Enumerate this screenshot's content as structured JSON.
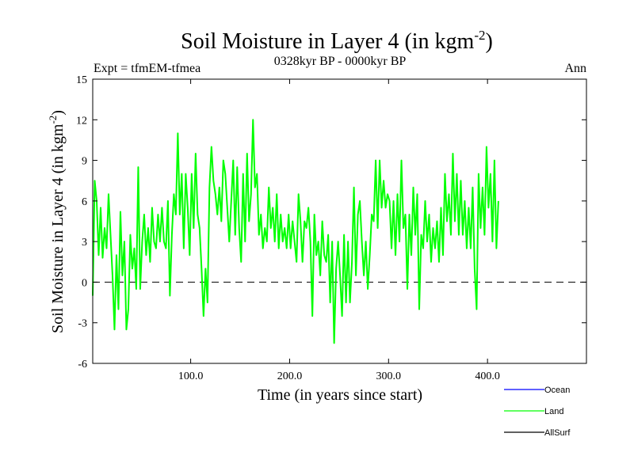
{
  "chart_data": {
    "type": "line",
    "title": "Soil Moisture in Layer 4 (in kgm",
    "title_sup": "-2",
    "title_end": ")",
    "subtitle_left": "Expt = tfmEM-tfmea",
    "subtitle_center": "0328kyr BP - 0000kyr BP",
    "subtitle_right": "Ann",
    "xlabel": "Time (in years since start)",
    "ylabel": "Soil Moisture in Layer 4 (in kgm",
    "ylabel_sup": "-2",
    "ylabel_end": ")",
    "xlim": [
      1,
      500
    ],
    "ylim": [
      -6,
      15
    ],
    "xticks": [
      100,
      200,
      300,
      400
    ],
    "xtick_labels": [
      "100.0",
      "200.0",
      "300.0",
      "400.0"
    ],
    "yticks": [
      -6,
      -3,
      0,
      3,
      6,
      9,
      12,
      15
    ],
    "ytick_labels": [
      "-6",
      "-3",
      "0",
      "3",
      "6",
      "9",
      "12",
      "15"
    ],
    "reference_line": 0,
    "legend": [
      {
        "name": "Ocean",
        "color": "#0000ff"
      },
      {
        "name": "Land",
        "color": "#00ff00"
      },
      {
        "name": "AllSurf",
        "color": "#000000"
      }
    ],
    "series": [
      {
        "name": "Land",
        "color": "#00ff00",
        "x_start": 1,
        "x_step": 2,
        "values": [
          -1.0,
          7.5,
          6.0,
          2.0,
          5.5,
          1.8,
          4.0,
          2.5,
          6.5,
          3.5,
          0.5,
          -3.5,
          2.0,
          -2.0,
          5.2,
          0.5,
          3.0,
          -3.5,
          -2.0,
          3.5,
          1.0,
          2.5,
          -0.5,
          8.5,
          -0.5,
          3.0,
          5.0,
          2.0,
          4.0,
          1.5,
          5.5,
          3.0,
          2.5,
          5.0,
          3.0,
          5.5,
          3.0,
          2.5,
          6.0,
          -1.0,
          3.5,
          6.5,
          5.0,
          11.0,
          5.0,
          8.0,
          2.5,
          8.0,
          5.5,
          2.0,
          8.0,
          4.0,
          9.5,
          5.0,
          4.0,
          1.0,
          -2.5,
          1.0,
          -1.5,
          7.0,
          10.0,
          7.5,
          6.5,
          5.0,
          7.0,
          4.5,
          9.0,
          8.0,
          5.5,
          3.0,
          6.0,
          9.0,
          3.5,
          8.5,
          4.0,
          1.5,
          8.0,
          3.0,
          9.5,
          4.5,
          6.5,
          12.0,
          7.0,
          8.0,
          3.5,
          5.0,
          2.5,
          4.0,
          3.0,
          7.0,
          4.0,
          5.5,
          3.0,
          6.5,
          2.5,
          5.0,
          3.0,
          4.0,
          2.5,
          5.0,
          2.5,
          4.5,
          3.0,
          1.5,
          6.5,
          4.5,
          1.5,
          4.5,
          4.0,
          5.5,
          3.0,
          -2.5,
          5.0,
          2.0,
          3.0,
          0.5,
          4.5,
          2.0,
          1.5,
          3.5,
          -1.5,
          3.0,
          -4.5,
          1.0,
          3.0,
          0.5,
          -2.5,
          3.5,
          -1.5,
          3.0,
          -1.5,
          1.5,
          7.0,
          0.5,
          5.0,
          6.0,
          3.0,
          0.5,
          3.0,
          -0.5,
          2.0,
          5.0,
          4.5,
          9.0,
          4.0,
          9.0,
          5.5,
          7.5,
          5.5,
          6.5,
          6.0,
          2.5,
          6.0,
          2.0,
          6.5,
          3.0,
          9.0,
          4.0,
          5.0,
          -0.5,
          5.0,
          2.0,
          7.0,
          3.5,
          6.5,
          -2.0,
          3.5,
          2.5,
          6.0,
          3.0,
          5.0,
          1.5,
          4.0,
          2.5,
          4.5,
          1.5,
          5.5,
          2.0,
          8.0,
          4.5,
          6.5,
          3.5,
          9.5,
          4.5,
          8.0,
          3.5,
          7.5,
          3.5,
          6.0,
          2.5,
          5.5,
          2.5,
          7.0,
          1.0,
          -2.0,
          8.0,
          4.0,
          7.0,
          3.5,
          10.0,
          5.5,
          8.0,
          3.0,
          9.0,
          2.5,
          6.0
        ]
      }
    ]
  }
}
